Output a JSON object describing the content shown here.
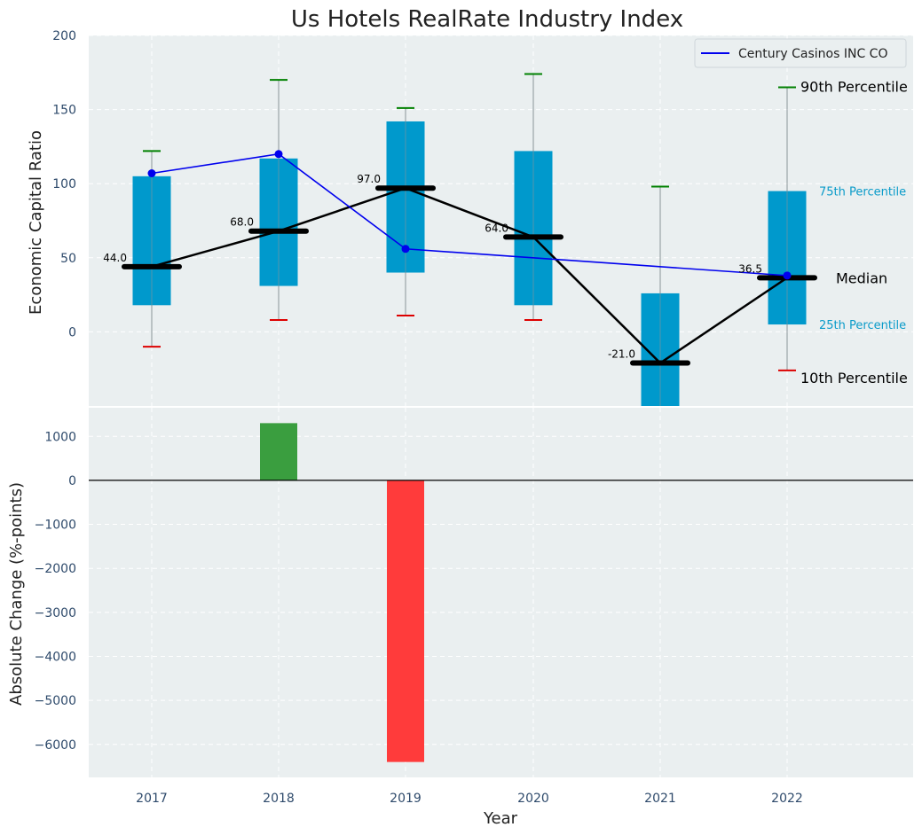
{
  "chart_data": [
    {
      "type": "box",
      "title": "Us Hotels RealRate Industry Index",
      "ylabel": "Economic Capital Ratio",
      "ylim": [
        -50,
        200
      ],
      "yticks": [
        0,
        50,
        100,
        150,
        200
      ],
      "categories": [
        "2017",
        "2018",
        "2019",
        "2020",
        "2021",
        "2022"
      ],
      "boxes": [
        {
          "year": "2017",
          "p10": -10,
          "p25": 18,
          "median": 44.0,
          "p75": 105,
          "p90": 122,
          "median_label": "44.0"
        },
        {
          "year": "2018",
          "p10": 8,
          "p25": 31,
          "median": 68.0,
          "p75": 117,
          "p90": 170,
          "median_label": "68.0"
        },
        {
          "year": "2019",
          "p10": 11,
          "p25": 40,
          "median": 97.0,
          "p75": 142,
          "p90": 151,
          "median_label": "97.0"
        },
        {
          "year": "2020",
          "p10": 8,
          "p25": 18,
          "median": 64.0,
          "p75": 122,
          "p90": 174,
          "median_label": "64.0"
        },
        {
          "year": "2021",
          "p10": -50,
          "p25": -50,
          "median": -21.0,
          "p75": 26,
          "p90": 98,
          "median_label": "-21.0"
        },
        {
          "year": "2022",
          "p10": -26,
          "p25": 5,
          "median": 36.5,
          "p75": 95,
          "p90": 165,
          "median_label": "36.5"
        }
      ],
      "series": [
        {
          "name": "Century Casinos INC CO",
          "color": "#0000ee",
          "values": [
            107,
            120,
            56,
            null,
            null,
            38
          ]
        }
      ],
      "legend": {
        "position": "top-right",
        "label": "Century Casinos INC CO"
      },
      "annotations": {
        "p90": "90th Percentile",
        "p75": "75th Percentile",
        "median": "Median",
        "p25": "25th Percentile",
        "p10": "10th Percentile"
      }
    },
    {
      "type": "bar",
      "xlabel": "Year",
      "ylabel": "Absolute Change (%-points)",
      "ylim": [
        -6750,
        1650
      ],
      "yticks": [
        1000,
        0,
        -1000,
        -2000,
        -3000,
        -4000,
        -5000,
        -6000
      ],
      "categories": [
        "2017",
        "2018",
        "2019",
        "2020",
        "2021",
        "2022"
      ],
      "values": [
        null,
        1300,
        -6400,
        null,
        null,
        null
      ],
      "positive_color": "#3a9e3f",
      "negative_color": "#ff3b3b"
    }
  ],
  "colors": {
    "box": "#0099cc",
    "median_line": "#000000",
    "whisker_top": "#008000",
    "whisker_bottom": "#dd0000",
    "plot_bg": "#eaeff0"
  }
}
